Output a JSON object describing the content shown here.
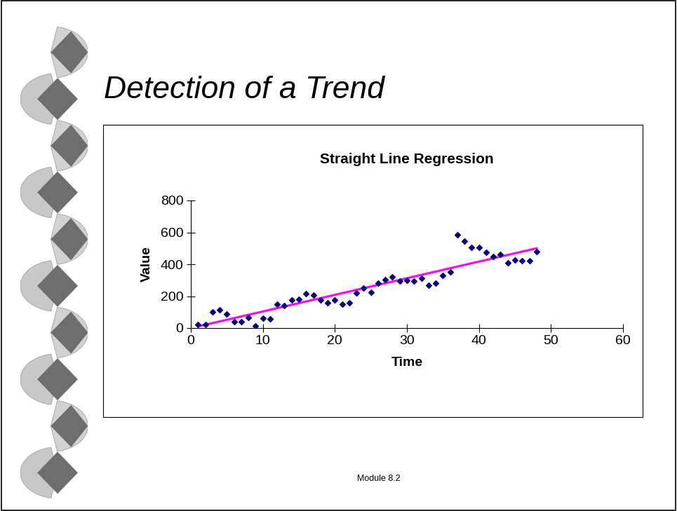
{
  "slide": {
    "title": "Detection of a Trend",
    "footer": "Module 8.2"
  },
  "chart_data": {
    "type": "scatter",
    "title": "Straight Line Regression",
    "x_label": "Time",
    "y_label": "Value",
    "xlim": [
      0,
      60
    ],
    "xticks": [
      0,
      10,
      20,
      30,
      40,
      50,
      60
    ],
    "ylim": [
      0,
      800
    ],
    "yticks": [
      0,
      200,
      400,
      600,
      800
    ],
    "grid": false,
    "series": [
      {
        "type": "scatter",
        "color": "#000080",
        "marker": "diamond",
        "x": [
          1,
          2,
          3,
          4,
          5,
          6,
          7,
          8,
          9,
          10,
          11,
          12,
          13,
          14,
          15,
          16,
          17,
          18,
          19,
          20,
          21,
          22,
          23,
          24,
          25,
          26,
          27,
          28,
          29,
          30,
          31,
          32,
          33,
          34,
          35,
          36,
          37,
          38,
          39,
          40,
          41,
          42,
          43,
          44,
          45,
          46,
          47,
          48
        ],
        "values": [
          20,
          20,
          100,
          115,
          90,
          40,
          40,
          65,
          15,
          60,
          55,
          150,
          140,
          175,
          180,
          215,
          205,
          175,
          160,
          175,
          150,
          160,
          220,
          250,
          225,
          280,
          305,
          320,
          295,
          300,
          295,
          310,
          270,
          280,
          330,
          350,
          585,
          545,
          505,
          505,
          475,
          450,
          460,
          410,
          425,
          420,
          420,
          480
        ]
      },
      {
        "type": "line",
        "color": "#ff00ff",
        "line_style": "solid",
        "x": [
          1,
          48
        ],
        "values": [
          10,
          500
        ]
      }
    ]
  }
}
